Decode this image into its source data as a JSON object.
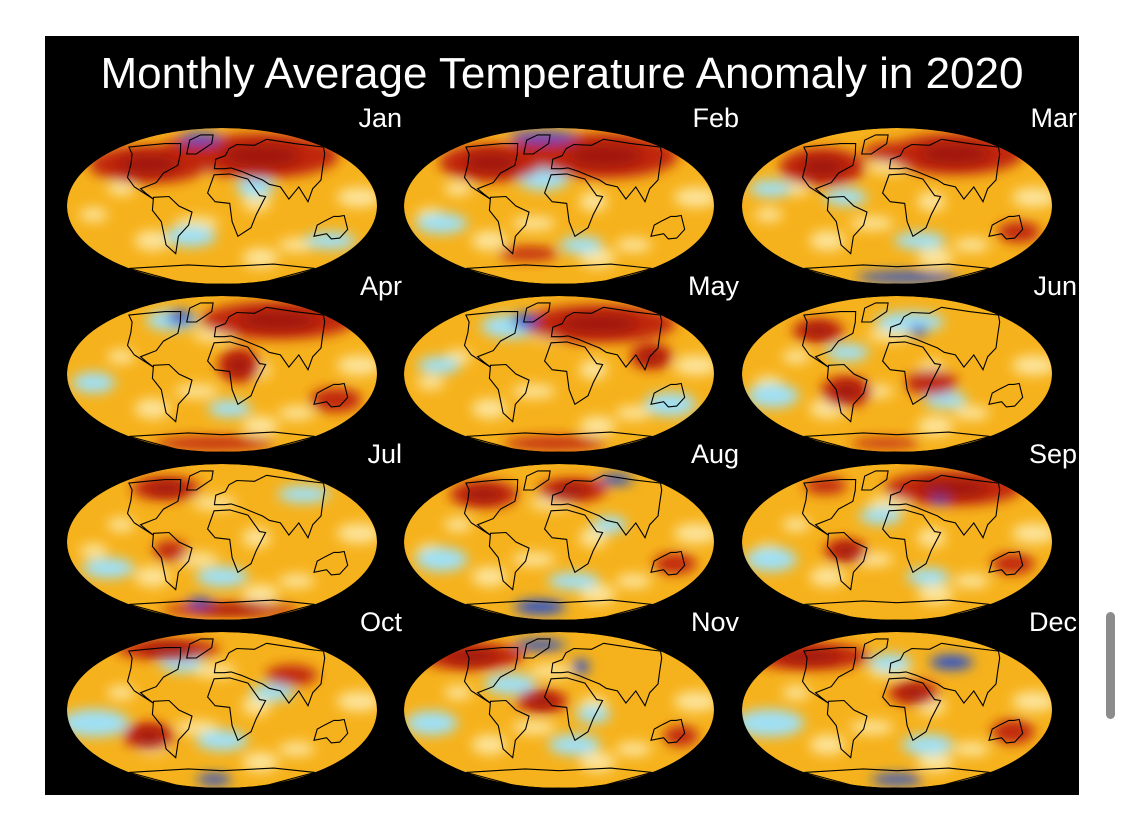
{
  "title": "Monthly Average Temperature Anomaly in 2020",
  "palette": {
    "background": "#000000",
    "warm_base": "#f6b21c",
    "hot": "#c0260f",
    "very_hot": "#8b0a08",
    "pale": "#fff6c6",
    "cold": "#9fe0f6",
    "very_cold": "#1f4bd6",
    "land_outline": "#000000"
  },
  "maps": [
    {
      "month": "Jan",
      "hot": [
        [
          -100,
          48,
          70,
          22
        ],
        [
          60,
          58,
          90,
          26
        ],
        [
          -30,
          68,
          50,
          12
        ],
        [
          130,
          62,
          30,
          14
        ]
      ],
      "cold": [
        [
          40,
          22,
          22,
          12
        ],
        [
          -40,
          -35,
          30,
          12
        ],
        [
          140,
          -40,
          30,
          10
        ]
      ],
      "very_cold": [
        [
          -50,
          78,
          25,
          6
        ]
      ]
    },
    {
      "month": "Feb",
      "hot": [
        [
          -95,
          50,
          60,
          22
        ],
        [
          70,
          58,
          85,
          26
        ],
        [
          -20,
          70,
          40,
          10
        ],
        [
          -45,
          -55,
          35,
          8
        ]
      ],
      "cold": [
        [
          -20,
          32,
          30,
          14
        ],
        [
          -140,
          -20,
          30,
          12
        ],
        [
          30,
          -45,
          25,
          10
        ]
      ],
      "very_cold": [
        [
          -40,
          80,
          40,
          6
        ]
      ]
    },
    {
      "month": "Mar",
      "hot": [
        [
          -100,
          45,
          50,
          22
        ],
        [
          90,
          60,
          80,
          24
        ],
        [
          0,
          62,
          40,
          12
        ],
        [
          150,
          -30,
          25,
          12
        ]
      ],
      "cold": [
        [
          -60,
          10,
          25,
          10
        ],
        [
          30,
          -40,
          30,
          10
        ],
        [
          -150,
          20,
          25,
          10
        ]
      ],
      "very_cold": [
        [
          30,
          -82,
          60,
          6
        ]
      ]
    },
    {
      "month": "Apr",
      "hot": [
        [
          90,
          62,
          90,
          22
        ],
        [
          20,
          10,
          25,
          20
        ],
        [
          140,
          -30,
          30,
          14
        ],
        [
          -20,
          -80,
          70,
          8
        ]
      ],
      "cold": [
        [
          -80,
          62,
          30,
          12
        ],
        [
          -150,
          -10,
          25,
          12
        ],
        [
          10,
          -40,
          25,
          10
        ]
      ],
      "very_cold": [
        [
          -70,
          65,
          15,
          8
        ]
      ]
    },
    {
      "month": "May",
      "hot": [
        [
          60,
          58,
          90,
          22
        ],
        [
          110,
          20,
          25,
          15
        ],
        [
          -10,
          -80,
          60,
          8
        ]
      ],
      "cold": [
        [
          -70,
          55,
          35,
          14
        ],
        [
          140,
          -35,
          30,
          14
        ],
        [
          -140,
          10,
          25,
          10
        ]
      ],
      "very_cold": [
        [
          -55,
          62,
          15,
          8
        ]
      ]
    },
    {
      "month": "Jun",
      "hot": [
        [
          -110,
          50,
          30,
          14
        ],
        [
          -60,
          -20,
          30,
          18
        ],
        [
          40,
          -10,
          30,
          15
        ],
        [
          -30,
          -80,
          40,
          6
        ]
      ],
      "cold": [
        [
          20,
          60,
          40,
          12
        ],
        [
          -150,
          -25,
          30,
          14
        ],
        [
          60,
          -30,
          25,
          10
        ],
        [
          -60,
          25,
          25,
          10
        ]
      ],
      "very_cold": [
        [
          30,
          50,
          10,
          6
        ]
      ]
    },
    {
      "month": "Jul",
      "hot": [
        [
          -90,
          62,
          40,
          14
        ],
        [
          20,
          -78,
          80,
          8
        ],
        [
          -60,
          -10,
          20,
          12
        ]
      ],
      "cold": [
        [
          -140,
          -30,
          30,
          12
        ],
        [
          0,
          -40,
          30,
          12
        ],
        [
          120,
          55,
          30,
          10
        ]
      ],
      "very_cold": [
        [
          -40,
          -70,
          15,
          6
        ]
      ]
    },
    {
      "month": "Aug",
      "hot": [
        [
          -110,
          55,
          40,
          16
        ],
        [
          20,
          60,
          40,
          14
        ],
        [
          140,
          -25,
          25,
          12
        ]
      ],
      "cold": [
        [
          60,
          20,
          20,
          10
        ],
        [
          -140,
          -20,
          30,
          14
        ],
        [
          20,
          -45,
          30,
          10
        ]
      ],
      "very_cold": [
        [
          -40,
          -75,
          30,
          8
        ],
        [
          110,
          72,
          20,
          6
        ]
      ]
    },
    {
      "month": "Sep",
      "hot": [
        [
          90,
          62,
          80,
          20
        ],
        [
          -60,
          -10,
          25,
          14
        ],
        [
          140,
          -25,
          25,
          12
        ],
        [
          -120,
          65,
          25,
          10
        ]
      ],
      "cold": [
        [
          -150,
          -20,
          30,
          14
        ],
        [
          -20,
          30,
          25,
          10
        ],
        [
          40,
          -40,
          25,
          10
        ]
      ],
      "very_cold": [
        [
          60,
          50,
          10,
          6
        ]
      ]
    },
    {
      "month": "Oct",
      "hot": [
        [
          -100,
          70,
          60,
          12
        ],
        [
          -90,
          -30,
          30,
          16
        ],
        [
          90,
          40,
          30,
          12
        ]
      ],
      "cold": [
        [
          -60,
          55,
          25,
          12
        ],
        [
          -150,
          -15,
          40,
          16
        ],
        [
          0,
          -35,
          30,
          12
        ],
        [
          60,
          20,
          25,
          10
        ]
      ],
      "very_cold": [
        [
          -20,
          -80,
          20,
          6
        ]
      ]
    },
    {
      "month": "Nov",
      "hot": [
        [
          -140,
          62,
          60,
          16
        ],
        [
          -20,
          10,
          30,
          14
        ],
        [
          150,
          -30,
          20,
          12
        ]
      ],
      "cold": [
        [
          -60,
          30,
          30,
          12
        ],
        [
          -150,
          -15,
          30,
          14
        ],
        [
          20,
          -40,
          30,
          12
        ],
        [
          40,
          -5,
          20,
          10
        ]
      ],
      "very_cold": [
        [
          30,
          50,
          10,
          8
        ],
        [
          -40,
          75,
          30,
          6
        ]
      ]
    },
    {
      "month": "Dec",
      "hot": [
        [
          -140,
          62,
          70,
          16
        ],
        [
          20,
          20,
          30,
          14
        ],
        [
          140,
          -25,
          25,
          14
        ]
      ],
      "cold": [
        [
          -150,
          -15,
          40,
          16
        ],
        [
          40,
          -40,
          30,
          12
        ],
        [
          -10,
          55,
          25,
          10
        ]
      ],
      "very_cold": [
        [
          80,
          55,
          25,
          8
        ],
        [
          0,
          -80,
          30,
          6
        ]
      ]
    }
  ]
}
